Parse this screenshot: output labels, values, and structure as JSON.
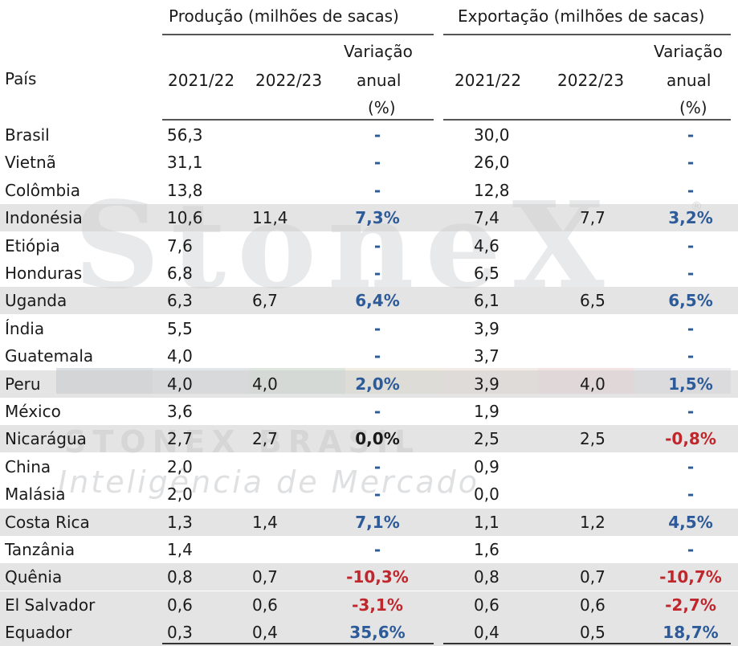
{
  "colors": {
    "positive": "#2d5b99",
    "negative": "#c0272d",
    "shade": "#d4d4d4",
    "line": "#555555"
  },
  "watermark": {
    "brand": "StoneX",
    "reg": "®",
    "line1": "STONEX BRASIL",
    "line2": "Inteligência de Mercado"
  },
  "header": {
    "country": "País",
    "production_group": "Produção  (milhões de sacas)",
    "export_group": "Exportação (milhões de sacas)",
    "y1": "2021/22",
    "y2": "2022/23",
    "var_line1": "Variação",
    "var_line2": "anual",
    "var_line3": "(%)"
  },
  "rows": [
    {
      "country": "Brasil",
      "p21": "56,3",
      "p22": "",
      "pv": "-",
      "pv_type": "dash",
      "e21": "30,0",
      "e22": "",
      "ev": "-",
      "ev_type": "dash",
      "shaded": false
    },
    {
      "country": "Vietnã",
      "p21": "31,1",
      "p22": "",
      "pv": "-",
      "pv_type": "dash",
      "e21": "26,0",
      "e22": "",
      "ev": "-",
      "ev_type": "dash",
      "shaded": false
    },
    {
      "country": "Colômbia",
      "p21": "13,8",
      "p22": "",
      "pv": "-",
      "pv_type": "dash",
      "e21": "12,8",
      "e22": "",
      "ev": "-",
      "ev_type": "dash",
      "shaded": false
    },
    {
      "country": "Indonésia",
      "p21": "10,6",
      "p22": "11,4",
      "pv": "7,3%",
      "pv_type": "pos",
      "e21": "7,4",
      "e22": "7,7",
      "ev": "3,2%",
      "ev_type": "pos",
      "shaded": true
    },
    {
      "country": "Etiópia",
      "p21": "7,6",
      "p22": "",
      "pv": "-",
      "pv_type": "dash",
      "e21": "4,6",
      "e22": "",
      "ev": "-",
      "ev_type": "dash",
      "shaded": false
    },
    {
      "country": "Honduras",
      "p21": "6,8",
      "p22": "",
      "pv": "-",
      "pv_type": "dash",
      "e21": "6,5",
      "e22": "",
      "ev": "-",
      "ev_type": "dash",
      "shaded": false
    },
    {
      "country": "Uganda",
      "p21": "6,3",
      "p22": "6,7",
      "pv": "6,4%",
      "pv_type": "pos",
      "e21": "6,1",
      "e22": "6,5",
      "ev": "6,5%",
      "ev_type": "pos",
      "shaded": true
    },
    {
      "country": "Índia",
      "p21": "5,5",
      "p22": "",
      "pv": "-",
      "pv_type": "dash",
      "e21": "3,9",
      "e22": "",
      "ev": "-",
      "ev_type": "dash",
      "shaded": false
    },
    {
      "country": "Guatemala",
      "p21": "4,0",
      "p22": "",
      "pv": "-",
      "pv_type": "dash",
      "e21": "3,7",
      "e22": "",
      "ev": "-",
      "ev_type": "dash",
      "shaded": false
    },
    {
      "country": "Peru",
      "p21": "4,0",
      "p22": "4,0",
      "pv": "2,0%",
      "pv_type": "pos",
      "e21": "3,9",
      "e22": "4,0",
      "ev": "1,5%",
      "ev_type": "pos",
      "shaded": true
    },
    {
      "country": "México",
      "p21": "3,6",
      "p22": "",
      "pv": "-",
      "pv_type": "dash",
      "e21": "1,9",
      "e22": "",
      "ev": "-",
      "ev_type": "dash",
      "shaded": false
    },
    {
      "country": "Nicarágua",
      "p21": "2,7",
      "p22": "2,7",
      "pv": "0,0%",
      "pv_type": "zero",
      "e21": "2,5",
      "e22": "2,5",
      "ev": "-0,8%",
      "ev_type": "neg",
      "shaded": true
    },
    {
      "country": "China",
      "p21": "2,0",
      "p22": "",
      "pv": "-",
      "pv_type": "dash",
      "e21": "0,9",
      "e22": "",
      "ev": "-",
      "ev_type": "dash",
      "shaded": false
    },
    {
      "country": "Malásia",
      "p21": "2,0",
      "p22": "",
      "pv": "-",
      "pv_type": "dash",
      "e21": "0,0",
      "e22": "",
      "ev": "-",
      "ev_type": "dash",
      "shaded": false
    },
    {
      "country": "Costa Rica",
      "p21": "1,3",
      "p22": "1,4",
      "pv": "7,1%",
      "pv_type": "pos",
      "e21": "1,1",
      "e22": "1,2",
      "ev": "4,5%",
      "ev_type": "pos",
      "shaded": true
    },
    {
      "country": "Tanzânia",
      "p21": "1,4",
      "p22": "",
      "pv": "-",
      "pv_type": "dash",
      "e21": "1,6",
      "e22": "",
      "ev": "-",
      "ev_type": "dash",
      "shaded": false
    },
    {
      "country": "Quênia",
      "p21": "0,8",
      "p22": "0,7",
      "pv": "-10,3%",
      "pv_type": "neg",
      "e21": "0,8",
      "e22": "0,7",
      "ev": "-10,7%",
      "ev_type": "neg",
      "shaded": true
    },
    {
      "country": "El Salvador",
      "p21": "0,6",
      "p22": "0,6",
      "pv": "-3,1%",
      "pv_type": "neg",
      "e21": "0,6",
      "e22": "0,6",
      "ev": "-2,7%",
      "ev_type": "neg",
      "shaded": true
    },
    {
      "country": "Equador",
      "p21": "0,3",
      "p22": "0,4",
      "pv": "35,6%",
      "pv_type": "pos",
      "e21": "0,4",
      "e22": "0,5",
      "ev": "18,7%",
      "ev_type": "pos",
      "shaded": true
    }
  ]
}
